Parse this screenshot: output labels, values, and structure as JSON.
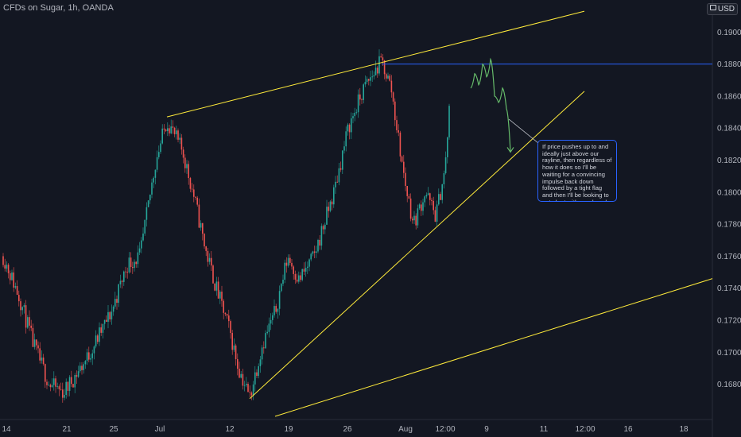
{
  "header": {
    "title": "CFDs on Sugar, 1h, OANDA",
    "currency_badge": "USD"
  },
  "colors": {
    "background": "#131722",
    "up_candle": "#26a69a",
    "down_candle": "#ef5350",
    "trendline": "#ffeb3b",
    "horizontal_line": "#2962ff",
    "projection": "#66bb6a",
    "axis_text": "#b2b5be"
  },
  "annotation": {
    "text": "If price pushes up to and ideally just above our rayline, then regardless of how it does so I'll be waiting for a convincing impulse back down followed by a tight flag and then I'll be looking to get short with a reduced risk entry on the break of the flag."
  },
  "chart_data": {
    "type": "candlestick",
    "symbol": "CFDs on Sugar",
    "interval": "1h",
    "broker": "OANDA",
    "y_axis": {
      "range": [
        0.1658,
        0.192
      ],
      "ticks": [
        "0.19000",
        "0.18800",
        "0.18600",
        "0.18400",
        "0.18200",
        "0.18000",
        "0.17800",
        "0.17600",
        "0.17400",
        "0.17200",
        "0.17000",
        "0.16800"
      ],
      "tick_values": [
        0.19,
        0.188,
        0.186,
        0.184,
        0.182,
        0.18,
        0.178,
        0.176,
        0.174,
        0.172,
        0.17,
        0.168
      ],
      "grid": false
    },
    "x_axis": {
      "ticks": [
        "14",
        "21",
        "25",
        "Jul",
        "12",
        "19",
        "26",
        "Aug",
        "12:00",
        "9",
        "11",
        "12:00",
        "16",
        "18"
      ]
    },
    "price_path": [
      [
        "Jun 14",
        0.176
      ],
      [
        "Jun 16",
        0.1735
      ],
      [
        "Jun 18",
        0.1705
      ],
      [
        "Jun 20",
        0.168
      ],
      [
        "Jun 22",
        0.1675
      ],
      [
        "Jun 24",
        0.1695
      ],
      [
        "Jun 25",
        0.1725
      ],
      [
        "Jun 27",
        0.1755
      ],
      [
        "Jun 29",
        0.176
      ],
      [
        "Jun 30",
        0.182
      ],
      [
        "Jul 1",
        0.1845
      ],
      [
        "Jul 2",
        0.1825
      ],
      [
        "Jul 4",
        0.1795
      ],
      [
        "Jul 6",
        0.1765
      ],
      [
        "Jul 8",
        0.174
      ],
      [
        "Jul 10",
        0.1715
      ],
      [
        "Jul 12",
        0.169
      ],
      [
        "Jul 14",
        0.1672
      ],
      [
        "Jul 16",
        0.1705
      ],
      [
        "Jul 18",
        0.1725
      ],
      [
        "Jul 19",
        0.176
      ],
      [
        "Jul 21",
        0.1745
      ],
      [
        "Jul 23",
        0.176
      ],
      [
        "Jul 25",
        0.18
      ],
      [
        "Jul 26",
        0.184
      ],
      [
        "Jul 28",
        0.1865
      ],
      [
        "Jul 29",
        0.1882
      ],
      [
        "Jul 30",
        0.1865
      ],
      [
        "Aug 1",
        0.181
      ],
      [
        "Aug 2",
        0.178
      ],
      [
        "Aug 3",
        0.18
      ],
      [
        "Aug 4",
        0.1785
      ],
      [
        "Aug 5",
        0.1815
      ],
      [
        "Aug 6",
        0.1865
      ]
    ],
    "drawings": {
      "upper_trendline": {
        "color": "#ffeb3b",
        "from": [
          "Jul 1",
          0.1847
        ],
        "to": [
          "Aug 11 12:00",
          0.1913
        ]
      },
      "lower_trendline": {
        "color": "#ffeb3b",
        "from": [
          "Jul 14",
          0.1671
        ],
        "to": [
          "Aug 11 12:00",
          0.1863
        ]
      },
      "channel_trendline": {
        "color": "#ffeb3b",
        "from": [
          "Jul 18",
          0.166
        ],
        "to": [
          "Aug 18+",
          0.1746
        ]
      },
      "horizontal_ray": {
        "color": "#2962ff",
        "from": [
          "Jul 29",
          0.188
        ],
        "direction": "right"
      },
      "projection": {
        "color": "#66bb6a",
        "path": [
          0.1865,
          0.1874,
          0.1867,
          0.188,
          0.1872,
          0.1883,
          0.186,
          0.1856,
          0.1865,
          0.1852,
          0.1825
        ]
      }
    }
  }
}
